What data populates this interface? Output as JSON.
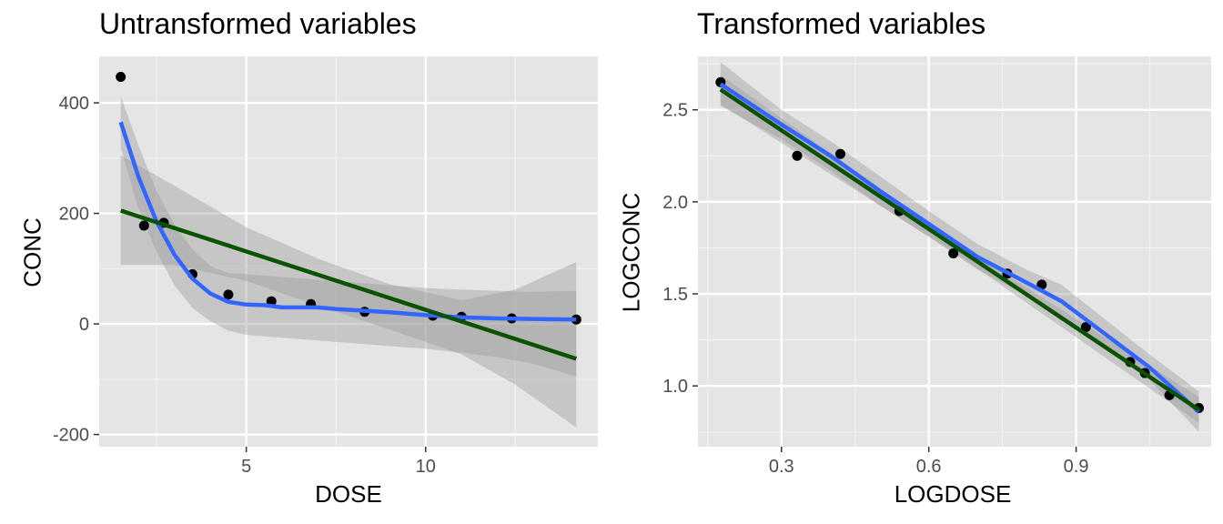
{
  "chart_data": [
    {
      "type": "scatter",
      "title": "Untransformed variables",
      "xlabel": "DOSE",
      "ylabel": "CONC",
      "xlim": [
        0.9,
        14.8
      ],
      "ylim": [
        -222,
        484
      ],
      "xticks": [
        5,
        10
      ],
      "xminor": [
        2.5,
        7.5,
        12.5
      ],
      "yticks": [
        -200,
        0,
        200,
        400
      ],
      "yminor": [
        -100,
        100,
        300
      ],
      "tick_labels_x": [
        "5",
        "10"
      ],
      "tick_labels_y": [
        "-200",
        "0",
        "200",
        "400"
      ],
      "grid": true,
      "background": "#e5e5e5",
      "points": [
        {
          "x": 1.5,
          "y": 447
        },
        {
          "x": 2.15,
          "y": 178
        },
        {
          "x": 2.7,
          "y": 183
        },
        {
          "x": 3.5,
          "y": 90
        },
        {
          "x": 4.5,
          "y": 53
        },
        {
          "x": 5.7,
          "y": 41
        },
        {
          "x": 6.8,
          "y": 36
        },
        {
          "x": 8.3,
          "y": 22
        },
        {
          "x": 10.2,
          "y": 15
        },
        {
          "x": 11.0,
          "y": 13
        },
        {
          "x": 12.4,
          "y": 10
        },
        {
          "x": 14.2,
          "y": 8
        }
      ],
      "series": [
        {
          "name": "",
          "kind": "loess",
          "color": "#3366ff",
          "line": [
            [
              1.5,
              365
            ],
            [
              2.0,
              265
            ],
            [
              2.5,
              185
            ],
            [
              3.0,
              125
            ],
            [
              3.5,
              82
            ],
            [
              4.0,
              55
            ],
            [
              4.5,
              40
            ],
            [
              5.0,
              35
            ],
            [
              5.5,
              34
            ],
            [
              6.0,
              30
            ],
            [
              6.5,
              30
            ],
            [
              7.0,
              30
            ],
            [
              7.5,
              27
            ],
            [
              8.0,
              25
            ],
            [
              9.0,
              21
            ],
            [
              10.0,
              16
            ],
            [
              11.0,
              12
            ],
            [
              12.0,
              10
            ],
            [
              13.0,
              9
            ],
            [
              14.2,
              8
            ]
          ],
          "band_upper": [
            [
              1.5,
              412
            ],
            [
              2.0,
              322
            ],
            [
              2.5,
              240
            ],
            [
              3.0,
              180
            ],
            [
              3.5,
              135
            ],
            [
              4.0,
              105
            ],
            [
              4.5,
              92
            ],
            [
              5.0,
              90
            ],
            [
              6.0,
              85
            ],
            [
              7.0,
              80
            ],
            [
              8.0,
              75
            ],
            [
              9.0,
              70
            ],
            [
              10.0,
              65
            ],
            [
              11.0,
              62
            ],
            [
              12.0,
              60
            ],
            [
              13.0,
              58
            ],
            [
              14.2,
              60
            ]
          ],
          "band_lower": [
            [
              1.5,
              318
            ],
            [
              2.0,
              208
            ],
            [
              2.5,
              130
            ],
            [
              3.0,
              70
            ],
            [
              3.5,
              29
            ],
            [
              4.0,
              5
            ],
            [
              4.5,
              -12
            ],
            [
              5.0,
              -20
            ],
            [
              6.0,
              -25
            ],
            [
              7.0,
              -30
            ],
            [
              8.0,
              -35
            ],
            [
              9.0,
              -40
            ],
            [
              10.0,
              -45
            ],
            [
              11.0,
              -52
            ],
            [
              12.0,
              -60
            ],
            [
              13.0,
              -72
            ],
            [
              14.2,
              -95
            ]
          ]
        },
        {
          "name": "",
          "kind": "lm",
          "color": "#0b5200",
          "line": [
            [
              1.5,
              205
            ],
            [
              14.2,
              -63
            ]
          ],
          "band_upper": [
            [
              1.5,
              305
            ],
            [
              3.0,
              250
            ],
            [
              5.0,
              175
            ],
            [
              7.0,
              118
            ],
            [
              9.0,
              72
            ],
            [
              11.0,
              43
            ],
            [
              12.5,
              62
            ],
            [
              14.2,
              112
            ]
          ],
          "band_lower": [
            [
              1.5,
              107
            ],
            [
              3.0,
              107
            ],
            [
              5.0,
              78
            ],
            [
              7.0,
              33
            ],
            [
              9.0,
              -10
            ],
            [
              11.0,
              -55
            ],
            [
              12.5,
              -110
            ],
            [
              14.2,
              -187
            ]
          ]
        }
      ]
    },
    {
      "type": "scatter",
      "title": "Transformed variables",
      "xlabel": "LOGDOSE",
      "ylabel": "LOGCONC",
      "xlim": [
        0.13,
        1.175
      ],
      "ylim": [
        0.67,
        2.79
      ],
      "xticks": [
        0.3,
        0.6,
        0.9
      ],
      "xminor": [
        0.15,
        0.45,
        0.75,
        1.05
      ],
      "yticks": [
        1.0,
        1.5,
        2.0,
        2.5
      ],
      "yminor": [
        0.75,
        1.25,
        1.75,
        2.25,
        2.75
      ],
      "tick_labels_x": [
        "0.3",
        "0.6",
        "0.9"
      ],
      "tick_labels_y": [
        "1.0",
        "1.5",
        "2.0",
        "2.5"
      ],
      "grid": true,
      "background": "#e5e5e5",
      "points": [
        {
          "x": 0.176,
          "y": 2.65
        },
        {
          "x": 0.332,
          "y": 2.25
        },
        {
          "x": 0.42,
          "y": 2.26
        },
        {
          "x": 0.54,
          "y": 1.95
        },
        {
          "x": 0.65,
          "y": 1.72
        },
        {
          "x": 0.76,
          "y": 1.61
        },
        {
          "x": 0.83,
          "y": 1.55
        },
        {
          "x": 0.92,
          "y": 1.32
        },
        {
          "x": 1.01,
          "y": 1.13
        },
        {
          "x": 1.04,
          "y": 1.07
        },
        {
          "x": 1.09,
          "y": 0.95
        },
        {
          "x": 1.15,
          "y": 0.88
        }
      ],
      "series": [
        {
          "name": "",
          "kind": "loess",
          "color": "#3366ff",
          "line": [
            [
              0.176,
              2.64
            ],
            [
              0.3,
              2.42
            ],
            [
              0.4,
              2.25
            ],
            [
              0.5,
              2.06
            ],
            [
              0.6,
              1.88
            ],
            [
              0.7,
              1.7
            ],
            [
              0.8,
              1.56
            ],
            [
              0.87,
              1.46
            ],
            [
              0.95,
              1.3
            ],
            [
              1.05,
              1.1
            ],
            [
              1.15,
              0.86
            ]
          ],
          "band_upper": [
            [
              0.176,
              2.76
            ],
            [
              0.3,
              2.5
            ],
            [
              0.4,
              2.33
            ],
            [
              0.5,
              2.14
            ],
            [
              0.6,
              1.95
            ],
            [
              0.7,
              1.77
            ],
            [
              0.8,
              1.63
            ],
            [
              0.87,
              1.55
            ],
            [
              0.95,
              1.38
            ],
            [
              1.05,
              1.17
            ],
            [
              1.15,
              0.97
            ]
          ],
          "band_lower": [
            [
              0.176,
              2.52
            ],
            [
              0.3,
              2.34
            ],
            [
              0.4,
              2.17
            ],
            [
              0.5,
              1.98
            ],
            [
              0.6,
              1.81
            ],
            [
              0.7,
              1.63
            ],
            [
              0.8,
              1.49
            ],
            [
              0.87,
              1.37
            ],
            [
              0.95,
              1.22
            ],
            [
              1.05,
              1.03
            ],
            [
              1.15,
              0.75
            ]
          ]
        },
        {
          "name": "",
          "kind": "lm",
          "color": "#0b5200",
          "line": [
            [
              0.176,
              2.61
            ],
            [
              1.15,
              0.87
            ]
          ],
          "band_upper": [
            [
              0.176,
              2.69
            ],
            [
              0.66,
              1.77
            ],
            [
              1.15,
              0.94
            ]
          ],
          "band_lower": [
            [
              0.176,
              2.53
            ],
            [
              0.66,
              1.71
            ],
            [
              1.15,
              0.8
            ]
          ]
        }
      ]
    }
  ]
}
